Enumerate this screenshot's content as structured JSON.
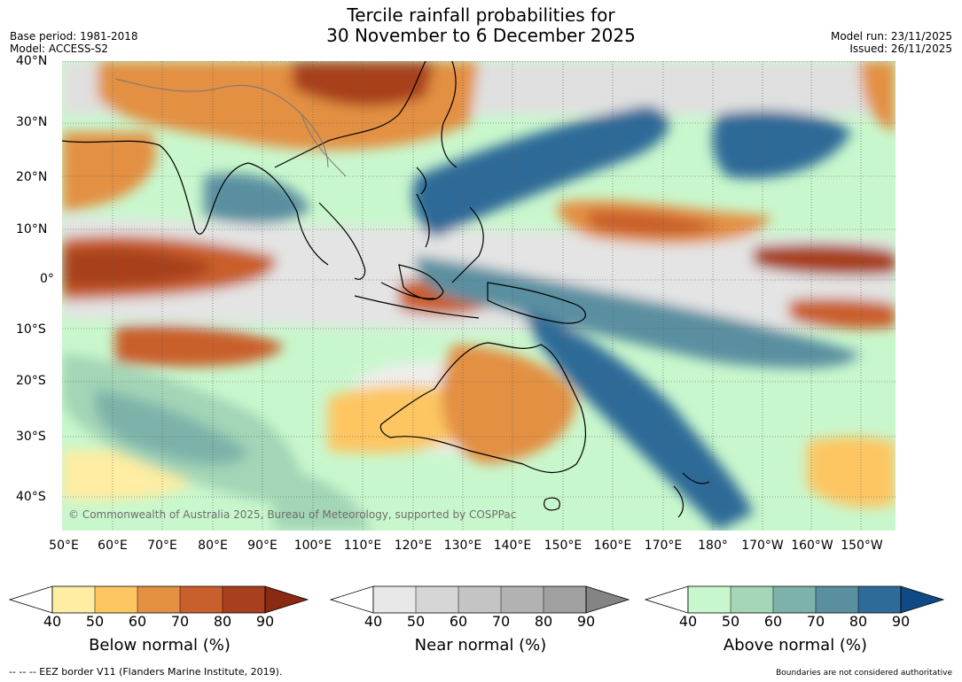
{
  "title": {
    "line1": "Tercile rainfall probabilities for",
    "line2": "30 November to 6 December 2025"
  },
  "meta_left": {
    "base_period": "Base period: 1981-2018",
    "model": "Model: ACCESS-S2"
  },
  "meta_right": {
    "model_run": "Model run: 23/11/2025",
    "issued": "Issued: 26/11/2025"
  },
  "map": {
    "lat_labels": [
      "40°N",
      "30°N",
      "20°N",
      "10°N",
      "0°",
      "10°S",
      "20°S",
      "30°S",
      "40°S"
    ],
    "lon_labels": [
      "50°E",
      "60°E",
      "70°E",
      "80°E",
      "90°E",
      "100°E",
      "110°E",
      "120°E",
      "130°E",
      "140°E",
      "150°E",
      "160°E",
      "170°E",
      "180°",
      "170°W",
      "160°W",
      "150°W"
    ],
    "copyright": "© Commonwealth of Australia 2025, Bureau of Meteorology, supported by COSPPac"
  },
  "legends": [
    {
      "label": "Below normal (%)",
      "ticks": [
        "40",
        "50",
        "60",
        "70",
        "80",
        "90"
      ],
      "colors": [
        "#ffffff",
        "#feeda2",
        "#fdc662",
        "#e39043",
        "#c95f2c",
        "#a8401e",
        "#8a2a12"
      ]
    },
    {
      "label": "Near normal (%)",
      "ticks": [
        "40",
        "50",
        "60",
        "70",
        "80",
        "90"
      ],
      "colors": [
        "#ffffff",
        "#e8e8e8",
        "#d6d6d6",
        "#c4c4c4",
        "#b2b2b2",
        "#a0a0a0",
        "#848484"
      ]
    },
    {
      "label": "Above normal (%)",
      "ticks": [
        "40",
        "50",
        "60",
        "70",
        "80",
        "90"
      ],
      "colors": [
        "#ffffff",
        "#c9f7cd",
        "#a3d5b6",
        "#7db2aa",
        "#5a8fa0",
        "#2f6b98",
        "#0f4a85"
      ]
    }
  ],
  "footer": {
    "left": "--  --  -- EEZ border V11 (Flanders Marine Institute, 2019).",
    "right": "Boundaries are not considered authoritative"
  }
}
